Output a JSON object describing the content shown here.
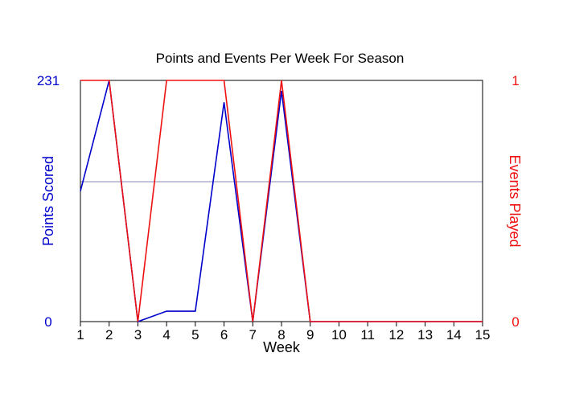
{
  "chart_data": {
    "type": "line",
    "title": "Points and Events Per Week For Season",
    "xlabel": "Week",
    "ylabel_left": "Points Scored",
    "ylabel_right": "Events Played",
    "x": [
      1,
      2,
      3,
      4,
      5,
      6,
      7,
      8,
      9,
      10,
      11,
      12,
      13,
      14,
      15
    ],
    "x_tick_labels": [
      "1",
      "2",
      "3",
      "4",
      "5",
      "6",
      "7",
      "8",
      "9",
      "10",
      "11",
      "12",
      "13",
      "14",
      "15"
    ],
    "ylim_left": [
      0,
      231
    ],
    "ylim_right": [
      0,
      1
    ],
    "left_tick_labels": [
      "0",
      "231"
    ],
    "right_tick_labels": [
      "0",
      "1"
    ],
    "reference_line_left": 134,
    "series": [
      {
        "axis": "left",
        "color": "#0000cc",
        "values": [
          125,
          231,
          0,
          10,
          10,
          210,
          0,
          221,
          0,
          0,
          0,
          0,
          0,
          0,
          0
        ]
      },
      {
        "axis": "right",
        "color": "#ee1111",
        "values": [
          1,
          1,
          0,
          1,
          1,
          1,
          0,
          1,
          0,
          0,
          0,
          0,
          0,
          0,
          0
        ]
      }
    ],
    "colors": {
      "left_axis": "#0000cc",
      "right_axis": "#ee1111",
      "reference_line": "#8888bb",
      "frame": "#000000"
    }
  }
}
